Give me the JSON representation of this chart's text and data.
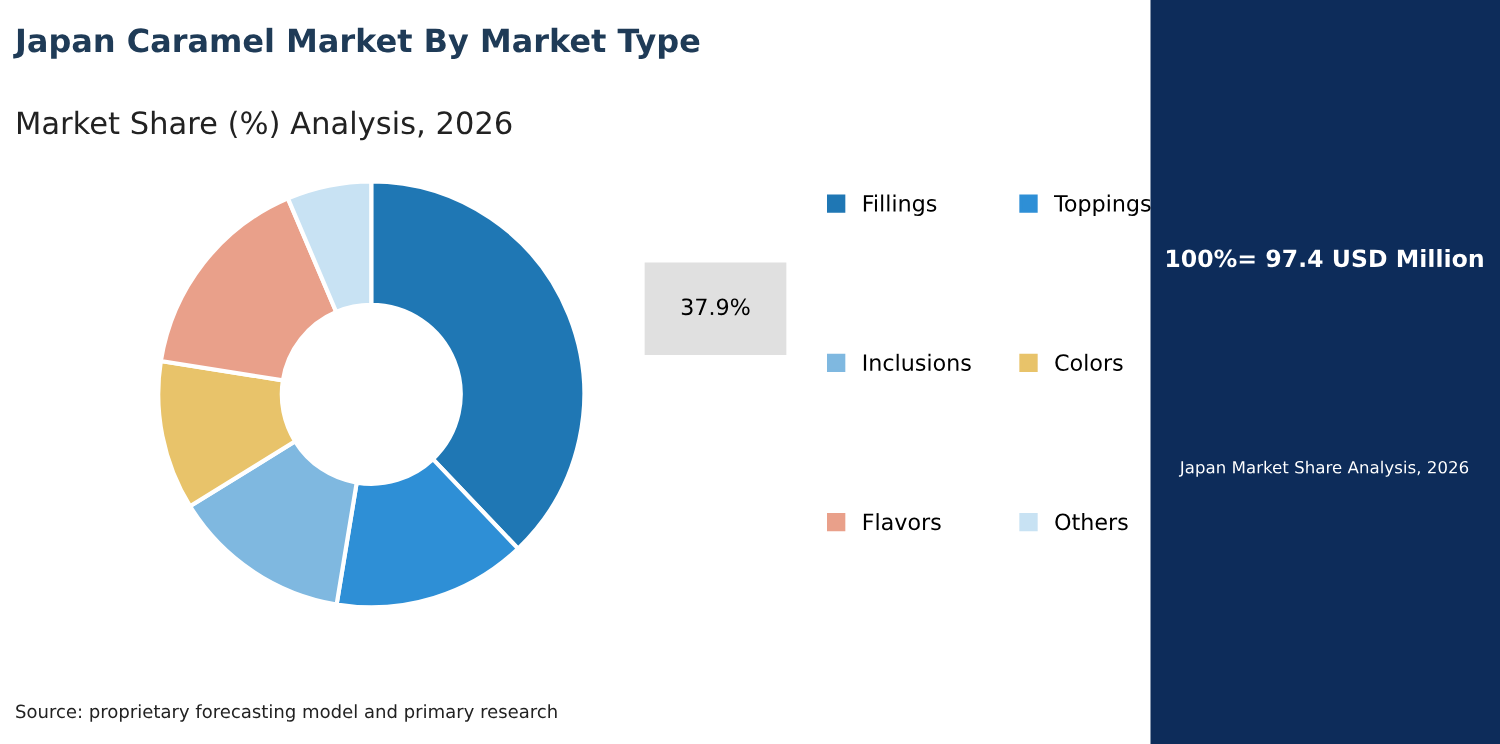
{
  "chart_data": {
    "type": "donut",
    "title": "Japan Caramel Market By Market Type",
    "subtitle": "Market Share (%) Analysis, 2026",
    "categories": [
      "Fillings",
      "Toppings",
      "Inclusions",
      "Colors",
      "Flavors",
      "Others"
    ],
    "values": [
      37.9,
      14.7,
      13.6,
      11.3,
      16.1,
      6.4
    ],
    "colors": [
      "#1f77b4",
      "#2e8fd6",
      "#7fb8e0",
      "#e8c36a",
      "#e9a08a",
      "#c8e2f3"
    ],
    "value_labels": [
      "37.9%",
      null,
      null,
      null,
      null,
      null
    ],
    "legend": "right",
    "annotations": [
      "100%= 97.4 USD Million",
      "Japan Market Share Analysis, 2026",
      "Source: proprietary forecasting model and primary research"
    ]
  }
}
